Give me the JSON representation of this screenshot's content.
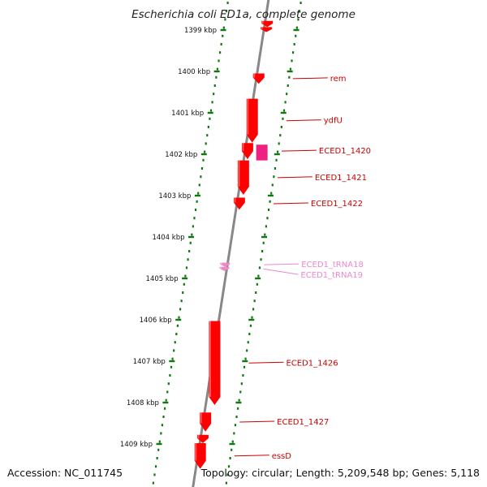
{
  "title": "Escherichia coli ED1a, complete genome",
  "footer": {
    "accession": "Accession: NC_011745",
    "topology": "Topology: circular; Length: 5,209,548 bp; Genes: 5,118"
  },
  "colors": {
    "gene": "#ff0000",
    "gene_alt": "#ee2080",
    "trna": "#ee88cc",
    "trna_label": "#ee88cc",
    "gene_label": "#cc0000",
    "tick": "#117711",
    "backbone": "#888888"
  },
  "ruler": {
    "unit": "kbp",
    "ticks": [
      {
        "kbp": 1399,
        "label": "1399 kbp"
      },
      {
        "kbp": 1400,
        "label": "1400 kbp"
      },
      {
        "kbp": 1401,
        "label": "1401 kbp"
      },
      {
        "kbp": 1402,
        "label": "1402 kbp"
      },
      {
        "kbp": 1403,
        "label": "1403 kbp"
      },
      {
        "kbp": 1404,
        "label": "1404 kbp"
      },
      {
        "kbp": 1405,
        "label": "1405 kbp"
      },
      {
        "kbp": 1406,
        "label": "1406 kbp"
      },
      {
        "kbp": 1407,
        "label": "1407 kbp"
      },
      {
        "kbp": 1408,
        "label": "1408 kbp"
      },
      {
        "kbp": 1409,
        "label": "1409 kbp"
      }
    ]
  },
  "genes": [
    {
      "start": 1398.78,
      "end": 1398.93,
      "strand": "-",
      "type": "CDS",
      "label": ""
    },
    {
      "start": 1398.93,
      "end": 1399.05,
      "strand": "-",
      "type": "CDS",
      "label": ""
    },
    {
      "start": 1400.05,
      "end": 1400.3,
      "strand": "-",
      "type": "CDS",
      "label": "rem"
    },
    {
      "start": 1400.66,
      "end": 1401.72,
      "strand": "-",
      "type": "CDS",
      "label": "ydfU"
    },
    {
      "start": 1401.73,
      "end": 1402.12,
      "strand": "-",
      "type": "CDS",
      "label": "ECED1_1420"
    },
    {
      "start": 1401.77,
      "end": 1402.15,
      "strand": "+",
      "type": "CDS-alt",
      "label": ""
    },
    {
      "start": 1402.15,
      "end": 1402.98,
      "strand": "-",
      "type": "CDS",
      "label": "ECED1_1421"
    },
    {
      "start": 1403.05,
      "end": 1403.34,
      "strand": "-",
      "type": "CDS",
      "label": "ECED1_1422"
    },
    {
      "start": 1404.62,
      "end": 1404.72,
      "strand": "-",
      "type": "tRNA",
      "label": "ECED1_tRNA18"
    },
    {
      "start": 1404.72,
      "end": 1404.82,
      "strand": "-",
      "type": "tRNA",
      "label": "ECED1_tRNA19"
    },
    {
      "start": 1406.03,
      "end": 1408.06,
      "strand": "-",
      "type": "CDS",
      "label": "ECED1_1426"
    },
    {
      "start": 1408.24,
      "end": 1408.7,
      "strand": "-",
      "type": "CDS",
      "label": "ECED1_1427"
    },
    {
      "start": 1408.78,
      "end": 1408.98,
      "strand": "-",
      "type": "CDS",
      "label": ""
    },
    {
      "start": 1408.98,
      "end": 1409.6,
      "strand": "-",
      "type": "CDS",
      "label": "essD"
    }
  ]
}
